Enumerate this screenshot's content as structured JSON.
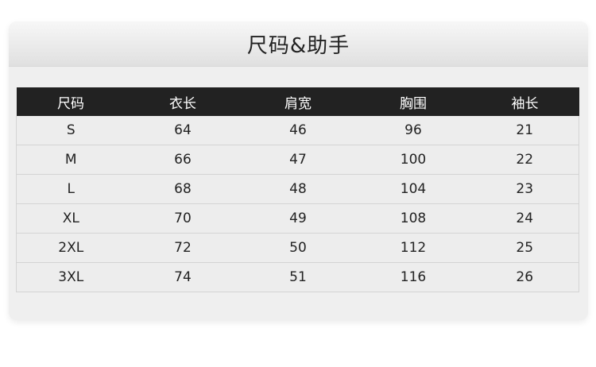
{
  "title": "尺码&助手",
  "headers": [
    "尺码",
    "衣长",
    "肩宽",
    "胸围",
    "袖长"
  ],
  "rows": [
    [
      "S",
      "64",
      "46",
      "96",
      "21"
    ],
    [
      "M",
      "66",
      "47",
      "100",
      "22"
    ],
    [
      "L",
      "68",
      "48",
      "104",
      "23"
    ],
    [
      "XL",
      "70",
      "49",
      "108",
      "24"
    ],
    [
      "2XL",
      "72",
      "50",
      "112",
      "25"
    ],
    [
      "3XL",
      "74",
      "51",
      "116",
      "26"
    ]
  ]
}
